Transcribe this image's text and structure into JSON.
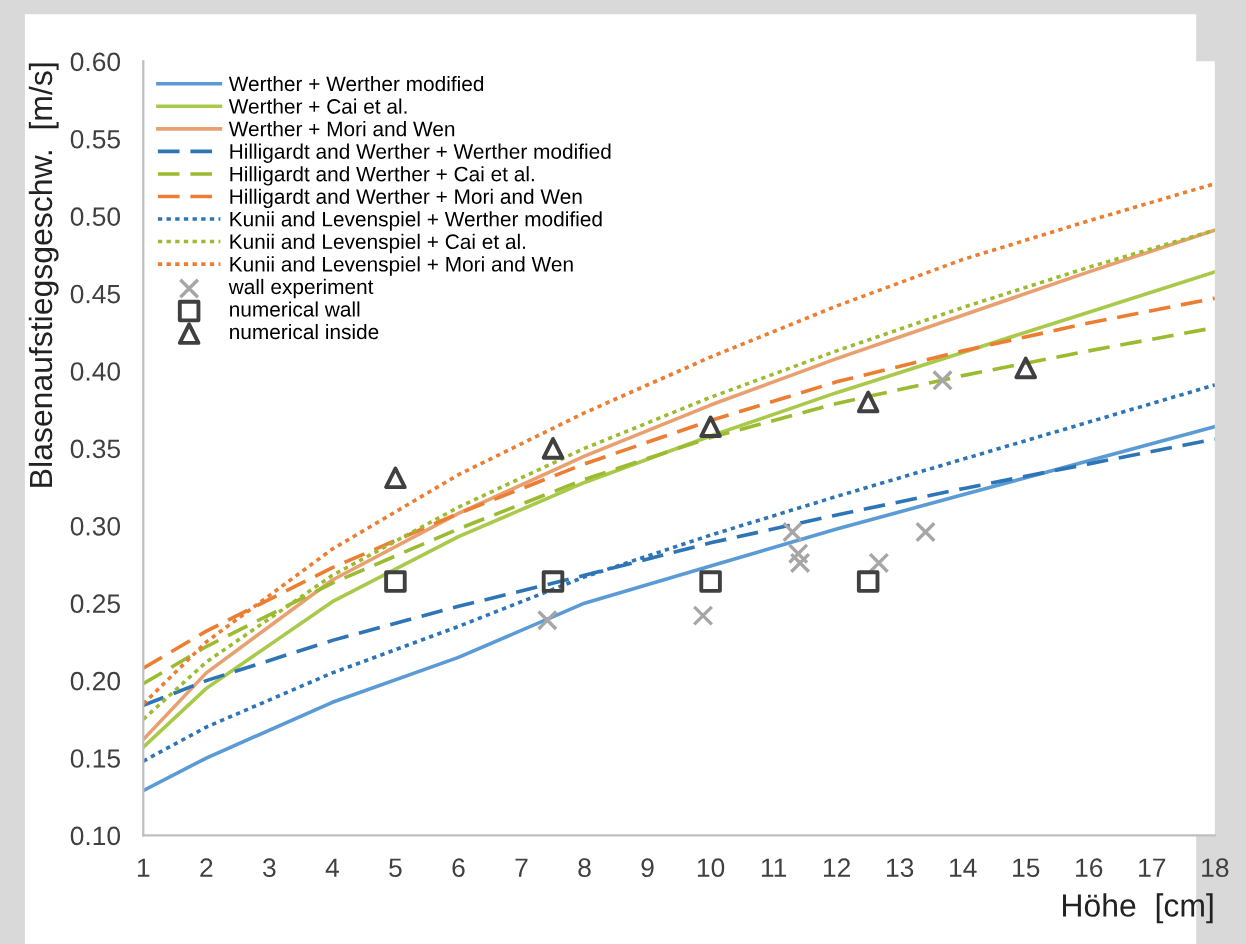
{
  "chart_data": {
    "type": "line",
    "xlabel": "Höhe  [cm]",
    "ylabel": "Blasenaufstiegsgeschw.  [m/s]",
    "x": [
      1,
      2,
      4,
      6,
      8,
      10,
      12,
      14,
      16,
      18
    ],
    "xlim": [
      1,
      18
    ],
    "xticks": [
      1,
      2,
      3,
      4,
      5,
      6,
      7,
      8,
      9,
      10,
      11,
      12,
      13,
      14,
      15,
      16,
      17,
      18
    ],
    "ylim": [
      0.1,
      0.6
    ],
    "yticks": [
      {
        "value": 0.1,
        "label": "0.10"
      },
      {
        "value": 0.15,
        "label": "0.15"
      },
      {
        "value": 0.2,
        "label": "0.20"
      },
      {
        "value": 0.25,
        "label": "0.25"
      },
      {
        "value": 0.3,
        "label": "0.30"
      },
      {
        "value": 0.35,
        "label": "0.35"
      },
      {
        "value": 0.4,
        "label": "0.40"
      },
      {
        "value": 0.45,
        "label": "0.45"
      },
      {
        "value": 0.5,
        "label": "0.50"
      },
      {
        "value": 0.55,
        "label": "0.55"
      },
      {
        "value": 0.6,
        "label": "0.60"
      }
    ],
    "grid": false,
    "legend": "top left",
    "marker": "none",
    "series": [
      {
        "name": "Werther + Werther modified",
        "color": "#5b9bd5",
        "line_style": "solid",
        "values": [
          0.129,
          0.15,
          0.186,
          0.215,
          0.25,
          0.274,
          0.298,
          0.32,
          0.342,
          0.364
        ]
      },
      {
        "name": "Werther + Cai et al.",
        "color": "#a9c94a",
        "line_style": "solid",
        "values": [
          0.157,
          0.195,
          0.251,
          0.293,
          0.328,
          0.358,
          0.386,
          0.412,
          0.438,
          0.464
        ]
      },
      {
        "name": "Werther + Mori and Wen",
        "color": "#e8a070",
        "line_style": "solid",
        "values": [
          0.162,
          0.205,
          0.265,
          0.308,
          0.345,
          0.378,
          0.408,
          0.436,
          0.464,
          0.491
        ]
      },
      {
        "name": "Hilligardt and Werther + Werther modified",
        "color": "#2e75b6",
        "line_style": "dashed",
        "values": [
          0.184,
          0.2,
          0.226,
          0.248,
          0.268,
          0.289,
          0.307,
          0.324,
          0.34,
          0.356
        ]
      },
      {
        "name": "Hilligardt and Werther + Cai et al.",
        "color": "#9bbb30",
        "line_style": "dashed",
        "values": [
          0.198,
          0.222,
          0.263,
          0.298,
          0.33,
          0.357,
          0.379,
          0.397,
          0.413,
          0.428
        ]
      },
      {
        "name": "Hilligardt and Werther + Mori and Wen",
        "color": "#ed7d31",
        "line_style": "dashed",
        "values": [
          0.208,
          0.232,
          0.273,
          0.308,
          0.34,
          0.368,
          0.393,
          0.413,
          0.431,
          0.447
        ]
      },
      {
        "name": "Kunii and Levenspiel + Werther modified",
        "color": "#2e75b6",
        "line_style": "dotted",
        "values": [
          0.148,
          0.17,
          0.205,
          0.235,
          0.267,
          0.294,
          0.319,
          0.343,
          0.367,
          0.391
        ]
      },
      {
        "name": "Kunii and Levenspiel + Cai et al.",
        "color": "#9bbb30",
        "line_style": "dotted",
        "values": [
          0.175,
          0.212,
          0.268,
          0.312,
          0.35,
          0.383,
          0.413,
          0.441,
          0.467,
          0.491
        ]
      },
      {
        "name": "Kunii and Levenspiel + Mori and Wen",
        "color": "#ed7d31",
        "line_style": "dotted",
        "values": [
          0.185,
          0.225,
          0.285,
          0.333,
          0.373,
          0.409,
          0.442,
          0.472,
          0.497,
          0.521
        ]
      },
      {
        "name": "wall experiment",
        "type": "scatter",
        "marker": "cross",
        "color": "#a6a6a6",
        "x": [
          7.41,
          9.88,
          11.3,
          11.39,
          11.42,
          12.67,
          13.41,
          13.68
        ],
        "values": [
          0.239,
          0.242,
          0.296,
          0.282,
          0.276,
          0.276,
          0.296,
          0.394
        ]
      },
      {
        "name": "numerical wall",
        "type": "scatter",
        "marker": "square",
        "color": "#404040",
        "x": [
          5,
          7.5,
          10,
          12.5
        ],
        "values": [
          0.264,
          0.264,
          0.264,
          0.264
        ]
      },
      {
        "name": "numerical inside",
        "type": "scatter",
        "marker": "triangle",
        "color": "#404040",
        "x": [
          5,
          7.5,
          10,
          12.5,
          15
        ],
        "values": [
          0.331,
          0.35,
          0.364,
          0.38,
          0.402
        ]
      }
    ]
  }
}
